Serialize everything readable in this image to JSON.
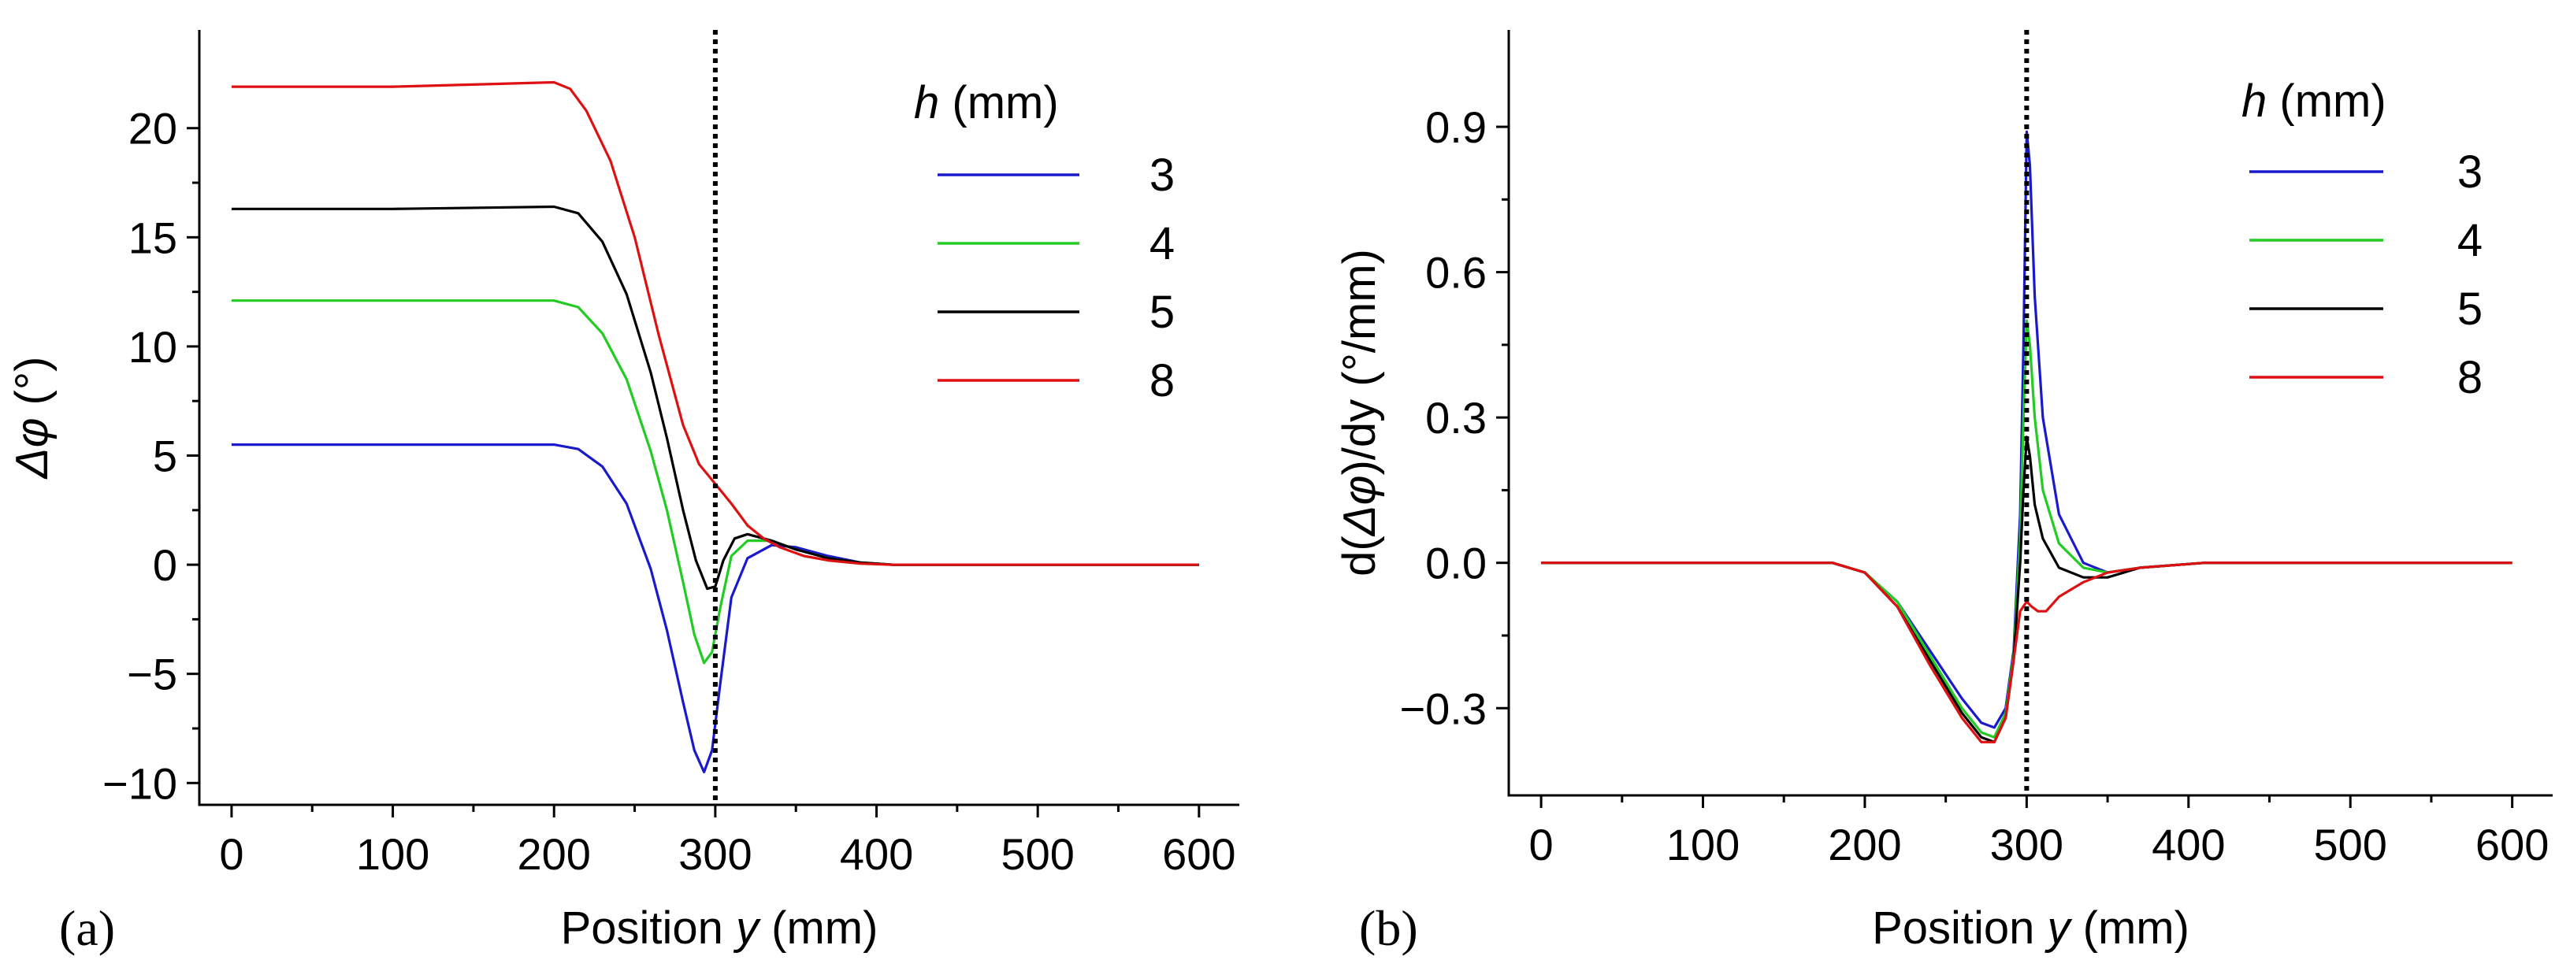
{
  "chart_data": [
    {
      "type": "line",
      "panel_label": "(a)",
      "title": "",
      "xlabel": "Position y (mm)",
      "xlabel_parts": [
        "Position ",
        "y",
        " (mm)"
      ],
      "ylabel": "Δφ (°)",
      "ylabel_parts": [
        "Δφ",
        " (°)"
      ],
      "xlim": [
        -20,
        625
      ],
      "ylim": [
        -11,
        24.5
      ],
      "xticks": [
        0,
        100,
        200,
        300,
        400,
        500,
        600
      ],
      "xtick_labels": [
        "0",
        "100",
        "200",
        "300",
        "400",
        "500",
        "600"
      ],
      "yticks": [
        -10,
        -5,
        0,
        5,
        10,
        15,
        20
      ],
      "ytick_labels": [
        "−10",
        "−5",
        "0",
        "5",
        "10",
        "15",
        "20"
      ],
      "reference_line_x": 300,
      "legend_title_parts": [
        "h",
        " (mm)"
      ],
      "legend_position": "top-right",
      "series": [
        {
          "name": "3",
          "color": "#1a1acc",
          "x": [
            0,
            100,
            200,
            215,
            230,
            245,
            260,
            270,
            280,
            287,
            293,
            298,
            303,
            310,
            320,
            335,
            350,
            370,
            390,
            410,
            450,
            600
          ],
          "y": [
            5.5,
            5.5,
            5.5,
            5.3,
            4.5,
            2.8,
            -0.2,
            -3.0,
            -6.3,
            -8.5,
            -9.5,
            -8.5,
            -5.5,
            -1.5,
            0.3,
            0.9,
            0.8,
            0.4,
            0.1,
            0.0,
            0.0,
            0.0
          ]
        },
        {
          "name": "4",
          "color": "#22cc22",
          "x": [
            0,
            100,
            200,
            215,
            230,
            245,
            260,
            270,
            280,
            287,
            293,
            298,
            303,
            310,
            320,
            335,
            350,
            370,
            390,
            410,
            450,
            600
          ],
          "y": [
            12.1,
            12.1,
            12.1,
            11.8,
            10.6,
            8.5,
            5.2,
            2.5,
            -0.8,
            -3.2,
            -4.5,
            -4.0,
            -2.0,
            0.4,
            1.1,
            1.1,
            0.7,
            0.3,
            0.1,
            0.0,
            0.0,
            0.0
          ]
        },
        {
          "name": "5",
          "color": "#000000",
          "x": [
            0,
            100,
            200,
            215,
            230,
            245,
            260,
            270,
            280,
            288,
            295,
            300,
            305,
            312,
            320,
            335,
            350,
            370,
            390,
            410,
            450,
            600
          ],
          "y": [
            16.3,
            16.3,
            16.4,
            16.1,
            14.8,
            12.4,
            8.8,
            5.8,
            2.5,
            0.2,
            -1.1,
            -1.0,
            0.2,
            1.2,
            1.4,
            1.1,
            0.7,
            0.3,
            0.1,
            0.0,
            0.0,
            0.0
          ]
        },
        {
          "name": "8",
          "color": "#dd1111",
          "x": [
            0,
            100,
            200,
            210,
            220,
            235,
            250,
            265,
            280,
            290,
            300,
            310,
            320,
            330,
            340,
            355,
            370,
            390,
            410,
            450,
            600
          ],
          "y": [
            21.9,
            21.9,
            22.1,
            21.8,
            20.8,
            18.5,
            15.0,
            10.5,
            6.4,
            4.6,
            3.7,
            2.8,
            1.8,
            1.2,
            0.8,
            0.4,
            0.2,
            0.05,
            0.0,
            0.0,
            0.0
          ]
        }
      ]
    },
    {
      "type": "line",
      "panel_label": "(b)",
      "title": "",
      "xlabel": "Position y (mm)",
      "xlabel_parts": [
        "Position ",
        "y",
        " (mm)"
      ],
      "ylabel": "d(Δφ)/dy (°/mm)",
      "ylabel_parts": [
        "d(",
        "Δφ",
        ")/dy (°/mm)"
      ],
      "xlim": [
        -20,
        625
      ],
      "ylim": [
        -0.48,
        1.1
      ],
      "xticks": [
        0,
        100,
        200,
        300,
        400,
        500,
        600
      ],
      "xtick_labels": [
        "0",
        "100",
        "200",
        "300",
        "400",
        "500",
        "600"
      ],
      "yticks": [
        -0.3,
        0.0,
        0.3,
        0.6,
        0.9
      ],
      "ytick_labels": [
        "−0.3",
        "0.0",
        "0.3",
        "0.6",
        "0.9"
      ],
      "reference_line_x": 300,
      "legend_title_parts": [
        "h",
        " (mm)"
      ],
      "legend_position": "top-right",
      "series": [
        {
          "name": "3",
          "color": "#1a1acc",
          "x": [
            0,
            150,
            180,
            200,
            220,
            240,
            260,
            272,
            280,
            287,
            292,
            296,
            298,
            300,
            302,
            305,
            310,
            320,
            335,
            350,
            370,
            410,
            600
          ],
          "y": [
            0,
            0,
            0,
            -0.02,
            -0.08,
            -0.18,
            -0.28,
            -0.33,
            -0.34,
            -0.3,
            -0.18,
            0.1,
            0.45,
            0.89,
            0.82,
            0.55,
            0.3,
            0.1,
            0.0,
            -0.02,
            -0.01,
            0,
            0
          ]
        },
        {
          "name": "4",
          "color": "#22cc22",
          "x": [
            0,
            150,
            180,
            200,
            220,
            240,
            260,
            272,
            280,
            287,
            292,
            296,
            298,
            300,
            302,
            305,
            310,
            320,
            335,
            350,
            370,
            410,
            600
          ],
          "y": [
            0,
            0,
            0,
            -0.02,
            -0.08,
            -0.19,
            -0.3,
            -0.35,
            -0.36,
            -0.31,
            -0.19,
            0.05,
            0.3,
            0.5,
            0.45,
            0.3,
            0.15,
            0.04,
            -0.01,
            -0.02,
            -0.01,
            0,
            0
          ]
        },
        {
          "name": "5",
          "color": "#000000",
          "x": [
            0,
            150,
            180,
            200,
            220,
            240,
            260,
            272,
            280,
            287,
            292,
            296,
            298,
            300,
            302,
            305,
            310,
            320,
            335,
            350,
            370,
            410,
            600
          ],
          "y": [
            0,
            0,
            0,
            -0.02,
            -0.09,
            -0.2,
            -0.31,
            -0.36,
            -0.37,
            -0.32,
            -0.2,
            0.0,
            0.15,
            0.26,
            0.22,
            0.12,
            0.05,
            -0.01,
            -0.03,
            -0.03,
            -0.01,
            0,
            0
          ]
        },
        {
          "name": "8",
          "color": "#dd1111",
          "x": [
            0,
            150,
            180,
            200,
            220,
            240,
            260,
            272,
            280,
            287,
            292,
            296,
            300,
            303,
            307,
            312,
            320,
            335,
            350,
            370,
            410,
            600
          ],
          "y": [
            0,
            0,
            0,
            -0.02,
            -0.09,
            -0.21,
            -0.32,
            -0.37,
            -0.37,
            -0.32,
            -0.2,
            -0.1,
            -0.08,
            -0.09,
            -0.1,
            -0.1,
            -0.07,
            -0.04,
            -0.02,
            -0.01,
            0,
            0
          ]
        }
      ]
    }
  ]
}
